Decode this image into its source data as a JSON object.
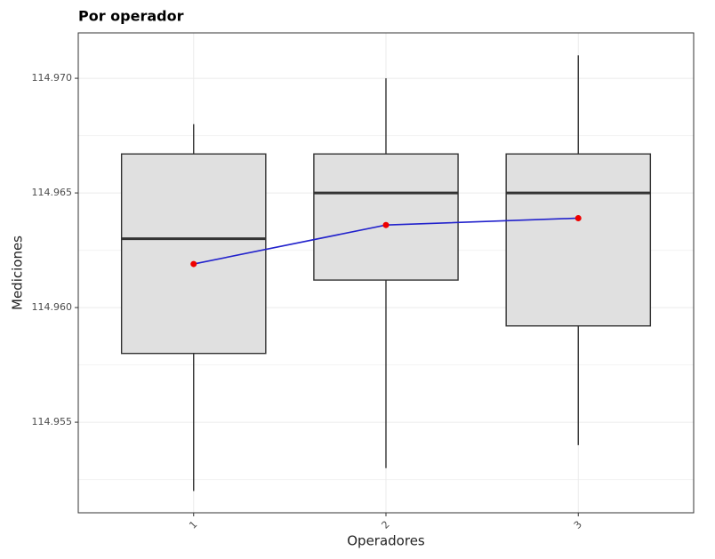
{
  "chart_data": {
    "type": "box",
    "title": "Por operador",
    "x_label": "Operadores",
    "y_label": "Mediciones",
    "categories": [
      "1",
      "2",
      "3"
    ],
    "boxes": [
      {
        "whisker_low": 114.952,
        "q1": 114.958,
        "median": 114.963,
        "q3": 114.9667,
        "whisker_high": 114.968
      },
      {
        "whisker_low": 114.953,
        "q1": 114.9612,
        "median": 114.965,
        "q3": 114.9667,
        "whisker_high": 114.97
      },
      {
        "whisker_low": 114.954,
        "q1": 114.9592,
        "median": 114.965,
        "q3": 114.9667,
        "whisker_high": 114.971
      }
    ],
    "mean_values": [
      114.9619,
      114.9636,
      114.9639
    ],
    "box_fill": "#e0e0e0",
    "box_stroke": "#333333",
    "mean_line_color": "#2222cc",
    "mean_point_color": "#ee0000",
    "ylim": [
      114.95105,
      114.97198
    ],
    "yticks": [
      {
        "value": 114.955,
        "label": "114.955"
      },
      {
        "value": 114.96,
        "label": "114.960"
      },
      114.965,
      {
        "value": 114.97,
        "label": "114.970"
      }
    ],
    "grid": true
  }
}
